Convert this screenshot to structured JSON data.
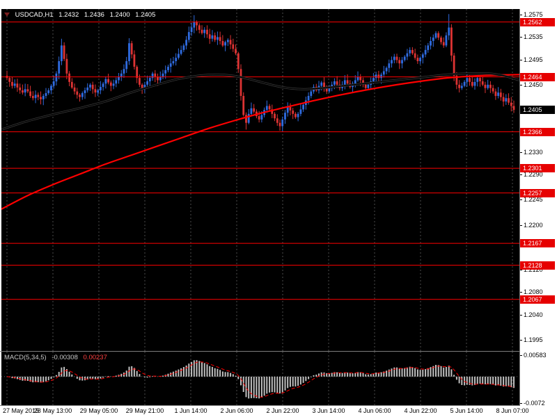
{
  "chart_data": {
    "type": "candlestick",
    "title": "USDCAD,H1",
    "symbol": "USDCAD",
    "timeframe": "H1",
    "ohlc_display": {
      "open": "1.2432",
      "high": "1.2436",
      "low": "1.2400",
      "close": "1.2405"
    },
    "x_labels": [
      "27 May 2015",
      "28 May 13:00",
      "29 May 05:00",
      "29 May 21:00",
      "1 Jun 14:00",
      "2 Jun 06:00",
      "2 Jun 22:00",
      "3 Jun 14:00",
      "4 Jun 06:00",
      "4 Jun 22:00",
      "5 Jun 14:00",
      "8 Jun 07:00"
    ],
    "price_axis": {
      "min": 1.1975,
      "max": 1.2585,
      "ticks": [
        1.2575,
        1.2535,
        1.2495,
        1.245,
        1.233,
        1.229,
        1.2245,
        1.22,
        1.212,
        1.208,
        1.204,
        1.1995
      ]
    },
    "levels": [
      1.2562,
      1.2464,
      1.2366,
      1.2301,
      1.2257,
      1.2167,
      1.2128,
      1.2067
    ],
    "bid_price": 1.2405,
    "closes": [
      1.2462,
      1.2455,
      1.2448,
      1.2452,
      1.2445,
      1.244,
      1.2436,
      1.2442,
      1.2438,
      1.243,
      1.2426,
      1.2432,
      1.2428,
      1.2424,
      1.243,
      1.2435,
      1.244,
      1.2448,
      1.2456,
      1.247,
      1.2492,
      1.252,
      1.2496,
      1.247,
      1.2455,
      1.2445,
      1.2438,
      1.2432,
      1.2428,
      1.2435,
      1.244,
      1.2445,
      1.245,
      1.2442,
      1.2436,
      1.244,
      1.2446,
      1.2452,
      1.246,
      1.2454,
      1.2448,
      1.2452,
      1.2458,
      1.2464,
      1.247,
      1.2478,
      1.2492,
      1.2524,
      1.2504,
      1.2482,
      1.2462,
      1.245,
      1.2444,
      1.245,
      1.2456,
      1.2462,
      1.247,
      1.2464,
      1.2458,
      1.2464,
      1.247,
      1.2476,
      1.2482,
      1.2488,
      1.2492,
      1.2498,
      1.2505,
      1.2512,
      1.252,
      1.253,
      1.2544,
      1.2552,
      1.2562,
      1.2556,
      1.2548,
      1.2542,
      1.2548,
      1.254,
      1.2532,
      1.2538,
      1.253,
      1.2535,
      1.2528,
      1.252,
      1.2526,
      1.253,
      1.2522,
      1.2514,
      1.2506,
      1.2478,
      1.243,
      1.2396,
      1.2382,
      1.2398,
      1.2408,
      1.2402,
      1.2394,
      1.2388,
      1.2396,
      1.2405,
      1.2412,
      1.2406,
      1.2398,
      1.239,
      1.2382,
      1.2376,
      1.2388,
      1.24,
      1.241,
      1.2404,
      1.2398,
      1.2392,
      1.2398,
      1.2406,
      1.2414,
      1.2422,
      1.243,
      1.2438,
      1.2446,
      1.244,
      1.2448,
      1.2454,
      1.2446,
      1.2438,
      1.2444,
      1.245,
      1.2456,
      1.245,
      1.2444,
      1.245,
      1.2458,
      1.2452,
      1.2446,
      1.2452,
      1.2458,
      1.2464,
      1.2458,
      1.245,
      1.2444,
      1.245,
      1.2456,
      1.2462,
      1.2468,
      1.2462,
      1.2468,
      1.2474,
      1.248,
      1.2488,
      1.2494,
      1.25,
      1.2494,
      1.2488,
      1.2494,
      1.25,
      1.2506,
      1.2512,
      1.2506,
      1.2498,
      1.2492,
      1.2498,
      1.2504,
      1.2512,
      1.252,
      1.2528,
      1.2534,
      1.2542,
      1.2534,
      1.2526,
      1.252,
      1.2538,
      1.2552,
      1.2502,
      1.2466,
      1.245,
      1.2444,
      1.2448,
      1.2455,
      1.2462,
      1.2455,
      1.2448,
      1.2455,
      1.2462,
      1.2456,
      1.245,
      1.2444,
      1.245,
      1.2444,
      1.2438,
      1.243,
      1.2436,
      1.2428,
      1.242,
      1.2426,
      1.2418,
      1.2412,
      1.2405
    ],
    "wick_overrides": {
      "21": {
        "high": 1.2532
      },
      "47": {
        "high": 1.2533
      },
      "72": {
        "high": 1.2574
      },
      "92": {
        "low": 1.237
      },
      "170": {
        "high": 1.2576
      }
    },
    "ma_fast": {
      "points": [
        [
          0.0,
          1.237
        ],
        [
          0.05,
          1.2385
        ],
        [
          0.1,
          1.2397
        ],
        [
          0.15,
          1.2408
        ],
        [
          0.2,
          1.242
        ],
        [
          0.25,
          1.2436
        ],
        [
          0.3,
          1.245
        ],
        [
          0.34,
          1.246
        ],
        [
          0.38,
          1.2466
        ],
        [
          0.42,
          1.2468
        ],
        [
          0.46,
          1.2464
        ],
        [
          0.5,
          1.2455
        ],
        [
          0.54,
          1.2446
        ],
        [
          0.58,
          1.2442
        ],
        [
          0.62,
          1.2444
        ],
        [
          0.66,
          1.2448
        ],
        [
          0.7,
          1.2452
        ],
        [
          0.74,
          1.2456
        ],
        [
          0.78,
          1.246
        ],
        [
          0.82,
          1.2464
        ],
        [
          0.86,
          1.2468
        ],
        [
          0.9,
          1.247
        ],
        [
          0.94,
          1.247
        ],
        [
          0.97,
          1.2466
        ],
        [
          1.0,
          1.2458
        ]
      ]
    },
    "ma_slow": {
      "points": [
        [
          0.0,
          1.2228
        ],
        [
          0.05,
          1.2252
        ],
        [
          0.1,
          1.2272
        ],
        [
          0.15,
          1.229
        ],
        [
          0.2,
          1.2308
        ],
        [
          0.25,
          1.2324
        ],
        [
          0.3,
          1.234
        ],
        [
          0.35,
          1.2356
        ],
        [
          0.4,
          1.2372
        ],
        [
          0.45,
          1.2386
        ],
        [
          0.5,
          1.2399
        ],
        [
          0.55,
          1.241
        ],
        [
          0.6,
          1.2421
        ],
        [
          0.65,
          1.2431
        ],
        [
          0.7,
          1.244
        ],
        [
          0.75,
          1.2448
        ],
        [
          0.8,
          1.2455
        ],
        [
          0.85,
          1.2461
        ],
        [
          0.9,
          1.2465
        ],
        [
          0.95,
          1.2467
        ],
        [
          1.0,
          1.2468
        ]
      ],
      "fast_period": 5,
      "slow_period": 34,
      "signal_period": 5
    },
    "macd": {
      "name": "MACD(5,34,5)",
      "current_main": "-0.00308",
      "current_signal": "0.00237",
      "axis": {
        "min": -0.0078,
        "max": 0.0068,
        "ticks": [
          {
            "label": "0.00583",
            "value": 0.00583
          },
          {
            "label": "-0.0072",
            "value": -0.0072
          }
        ]
      }
    }
  },
  "colors": {
    "chart_bg": "#000000",
    "page_bg": "#FFFFFF",
    "bull": "#2F6BE0",
    "bear": "#DD3333",
    "level_line": "#FF0000",
    "level_label_bg": "#E60000",
    "bid_label_bg": "#000000",
    "ma_fast": "#000000",
    "ma_fast_halo": "#3A3A3A",
    "ma_slow": "#FF0000",
    "macd_histogram": "#C0C0C0",
    "macd_signal": "#FF0000",
    "grid": "#4D4D4D",
    "axis_text": "#000000",
    "header_text": "#FFFFFF"
  }
}
